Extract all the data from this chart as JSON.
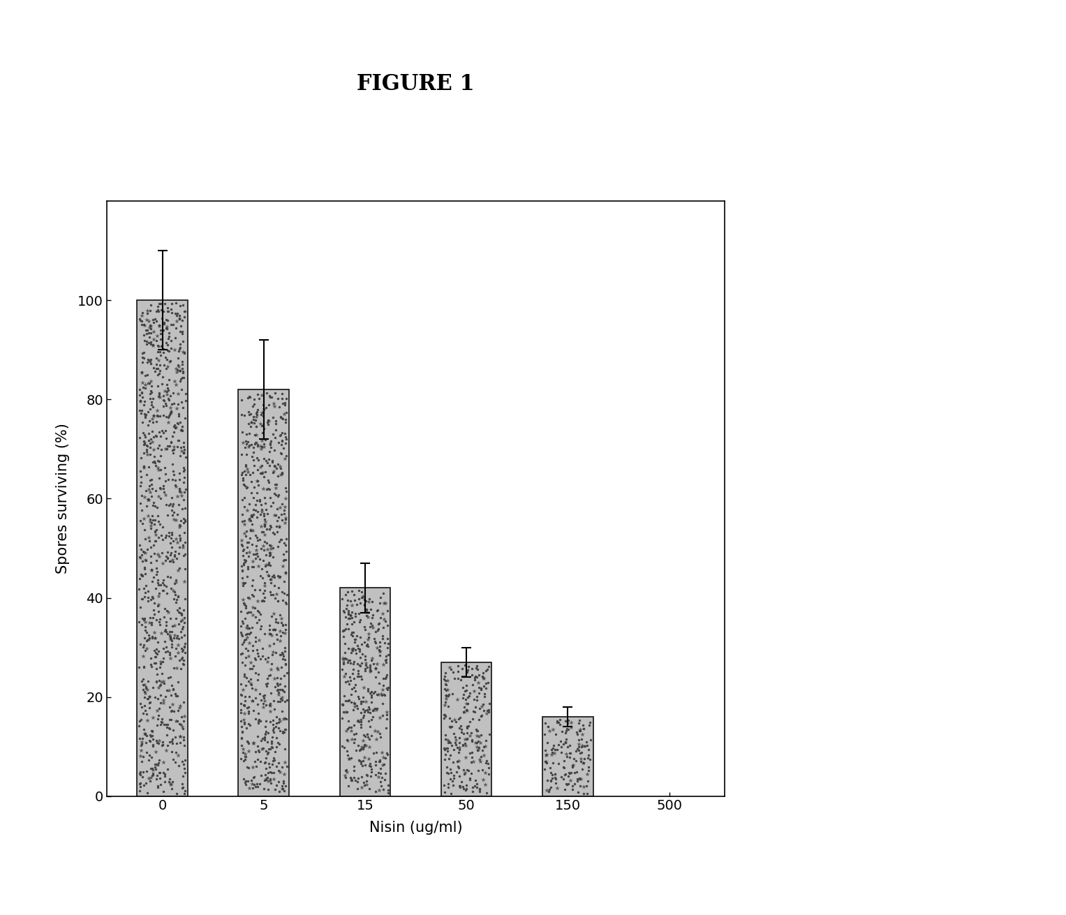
{
  "title": "FIGURE 1",
  "xlabel": "Nisin (ug/ml)",
  "ylabel": "Spores surviving (%)",
  "categories": [
    "0",
    "5",
    "15",
    "50",
    "150",
    "500"
  ],
  "x_positions": [
    0,
    1,
    2,
    3,
    4,
    5
  ],
  "bar_values": [
    100,
    82,
    42,
    27,
    16,
    0
  ],
  "error_bars": [
    10,
    10,
    5,
    3,
    2,
    0
  ],
  "bar_color": "#b8b8b8",
  "bar_edgecolor": "#222222",
  "ylim": [
    0,
    120
  ],
  "yticks": [
    0,
    20,
    40,
    60,
    80,
    100
  ],
  "bar_width": 0.5,
  "title_fontsize": 22,
  "axis_label_fontsize": 15,
  "tick_fontsize": 14,
  "background_color": "#ffffff",
  "plot_bg_color": "#ffffff"
}
